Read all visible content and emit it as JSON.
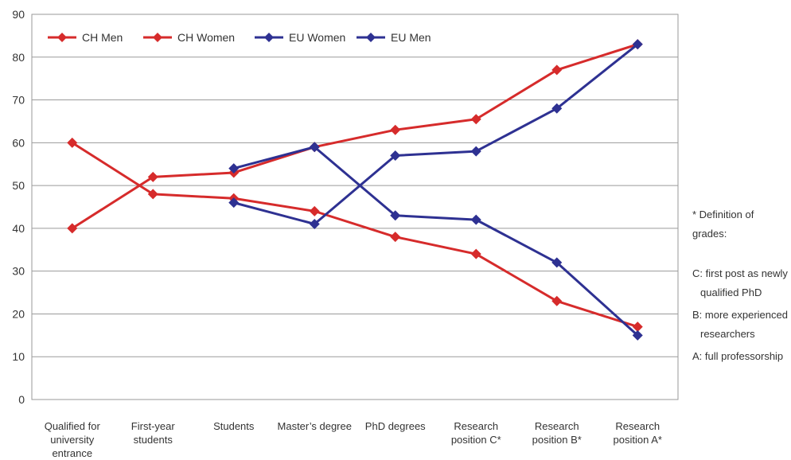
{
  "chart_data": {
    "type": "line",
    "categories": [
      [
        "Qualified for",
        "university",
        "entrance"
      ],
      [
        "First-year",
        "students"
      ],
      [
        "Students"
      ],
      [
        "Master’s degree"
      ],
      [
        "PhD degrees"
      ],
      [
        "Research",
        "position C*"
      ],
      [
        "Research",
        "position B*"
      ],
      [
        "Research",
        "position A*"
      ]
    ],
    "ylim": [
      0,
      90
    ],
    "yticks": [
      0,
      10,
      20,
      30,
      40,
      50,
      60,
      70,
      80,
      90
    ],
    "grid": "horizontal",
    "legend": "top-left",
    "series": [
      {
        "name": "CH Men",
        "color": "#d62b2b",
        "values": [
          40,
          52,
          53,
          59,
          63,
          65.5,
          77,
          83
        ]
      },
      {
        "name": "CH Women",
        "color": "#d62b2b",
        "values": [
          60,
          48,
          47,
          44,
          38,
          34,
          23,
          17
        ]
      },
      {
        "name": "EU Women",
        "color": "#2e3192",
        "values": [
          null,
          null,
          46,
          41,
          57,
          58,
          68,
          83
        ]
      },
      {
        "name": "EU Men",
        "color": "#2e3192",
        "values": [
          null,
          null,
          54,
          59,
          43,
          42,
          32,
          15
        ]
      }
    ]
  },
  "notes": {
    "title": "* Definition of grades:",
    "items": [
      "C: first post as newly qualified PhD",
      "B: more experienced researchers",
      "A: full professorship"
    ]
  }
}
